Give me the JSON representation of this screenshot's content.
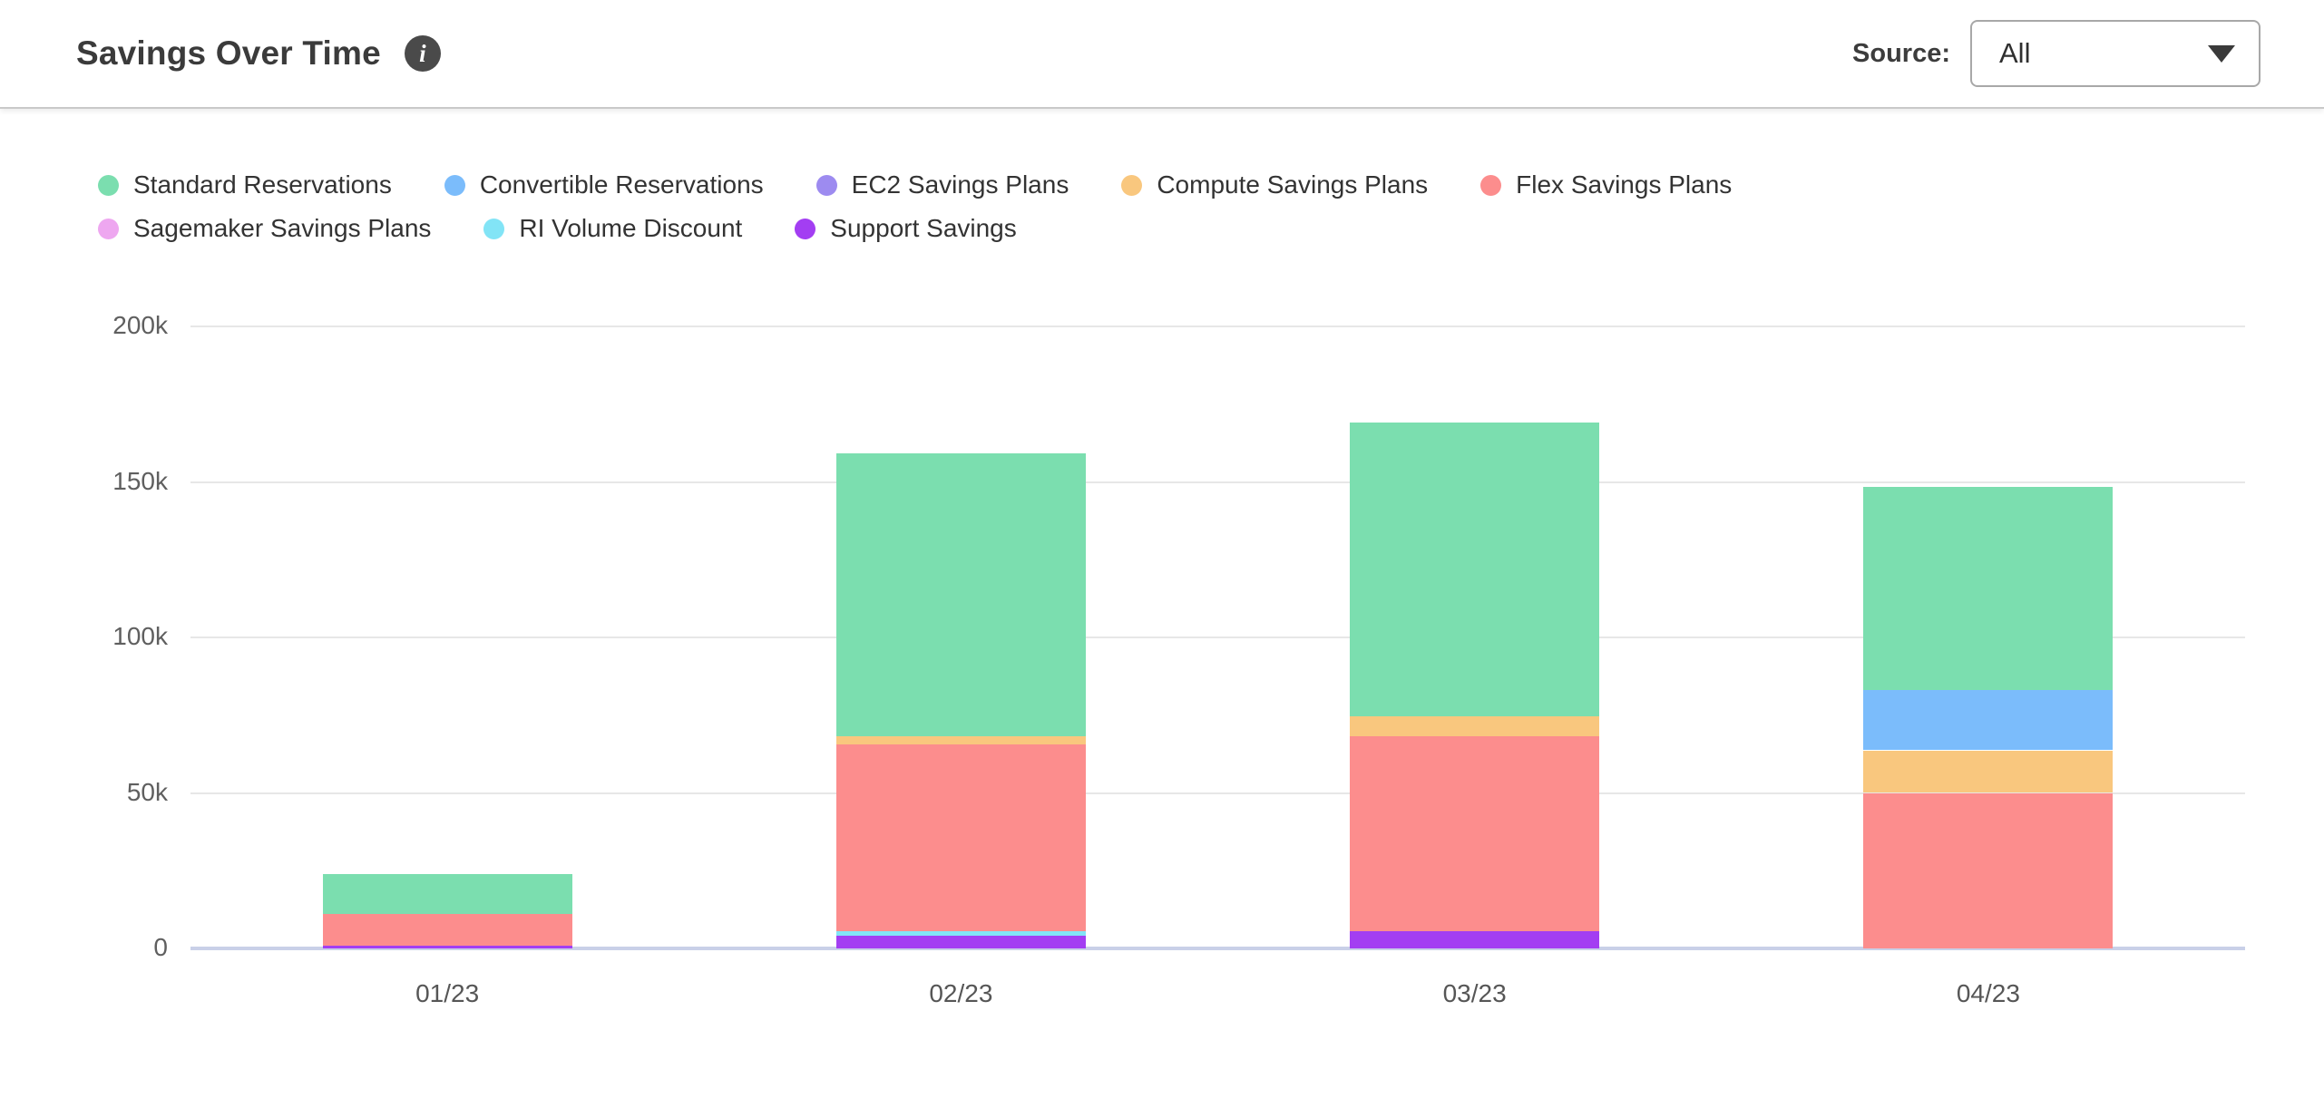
{
  "header": {
    "title": "Savings Over Time",
    "source_label": "Source:",
    "source_value": "All",
    "info_icon_glyph": "i",
    "dropdown_caret": "chevron-down"
  },
  "legend": {
    "items": [
      {
        "label": "Standard Reservations",
        "color": "#7bdeaf"
      },
      {
        "label": "Convertible Reservations",
        "color": "#7bbcfb"
      },
      {
        "label": "EC2 Savings Plans",
        "color": "#9d8bf0"
      },
      {
        "label": "Compute Savings Plans",
        "color": "#f9c77e"
      },
      {
        "label": "Flex Savings Plans",
        "color": "#fc8d8d"
      },
      {
        "label": "Sagemaker Savings Plans",
        "color": "#eea7f0"
      },
      {
        "label": "RI Volume Discount",
        "color": "#82e4f6"
      },
      {
        "label": "Support Savings",
        "color": "#a33ef2"
      }
    ]
  },
  "chart_data": {
    "type": "bar",
    "stacked": true,
    "title": "Savings Over Time",
    "xlabel": "",
    "ylabel": "",
    "categories": [
      "01/23",
      "02/23",
      "03/23",
      "04/23"
    ],
    "series": [
      {
        "name": "Standard Reservations",
        "color": "#7bdeaf",
        "values": [
          12600,
          91200,
          94500,
          65100
        ]
      },
      {
        "name": "Convertible Reservations",
        "color": "#7bbcfb",
        "values": [
          0,
          0,
          0,
          19500
        ]
      },
      {
        "name": "EC2 Savings Plans",
        "color": "#9d8bf0",
        "values": [
          0,
          0,
          0,
          0
        ]
      },
      {
        "name": "Compute Savings Plans",
        "color": "#f9c77e",
        "values": [
          0,
          2400,
          6400,
          13700
        ]
      },
      {
        "name": "Flex Savings Plans",
        "color": "#fc8d8d",
        "values": [
          10200,
          60300,
          62700,
          50000
        ]
      },
      {
        "name": "Sagemaker Savings Plans",
        "color": "#eea7f0",
        "values": [
          0,
          0,
          0,
          0
        ]
      },
      {
        "name": "RI Volume Discount",
        "color": "#82e4f6",
        "values": [
          0,
          1200,
          0,
          0
        ]
      },
      {
        "name": "Support Savings",
        "color": "#a33ef2",
        "values": [
          1000,
          4200,
          5400,
          0
        ]
      }
    ],
    "stack_order_bottom_to_top": [
      "Support Savings",
      "RI Volume Discount",
      "Flex Savings Plans",
      "Compute Savings Plans",
      "Convertible Reservations",
      "Standard Reservations",
      "EC2 Savings Plans",
      "Sagemaker Savings Plans"
    ],
    "y_ticks": [
      {
        "value": 0,
        "label": "0"
      },
      {
        "value": 50000,
        "label": "50k"
      },
      {
        "value": 100000,
        "label": "100k"
      },
      {
        "value": 150000,
        "label": "150k"
      },
      {
        "value": 200000,
        "label": "200k"
      }
    ],
    "ylim": [
      0,
      200000
    ],
    "grid": true,
    "legend_position": "top",
    "colors": {
      "axis_baseline": "#c9d0e8",
      "gridline": "#e7e7e7",
      "tick_text": "#5f5f5f"
    }
  }
}
